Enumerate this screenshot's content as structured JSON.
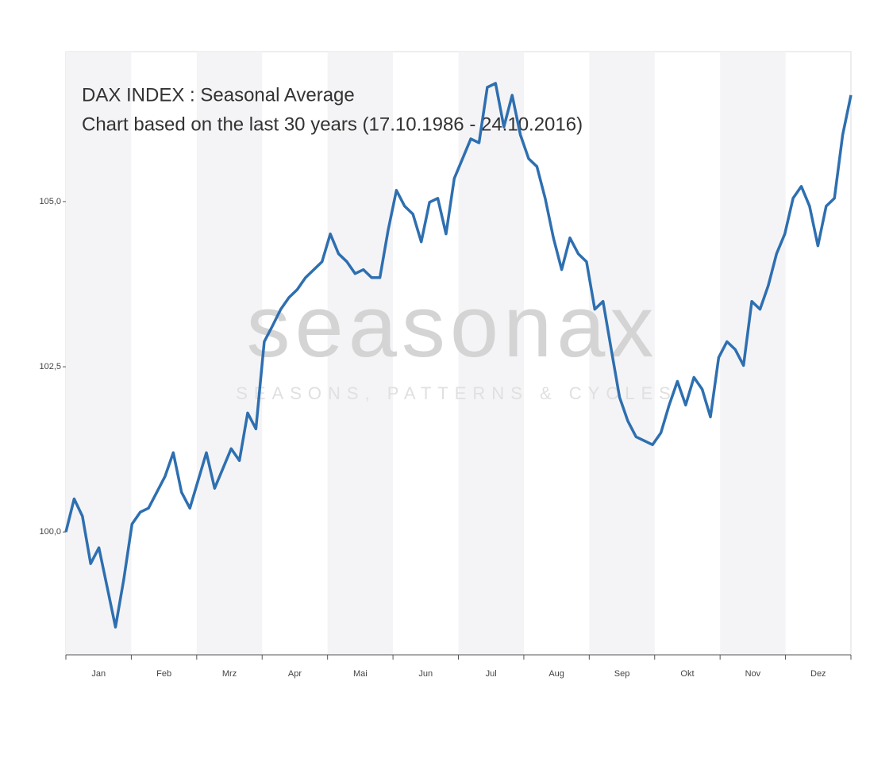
{
  "chart_data": {
    "type": "line",
    "title": "DAX INDEX : Seasonal Average",
    "subtitle": "Chart based on the last 30 years (17.10.1986 - 24.10.2016)",
    "watermark": "seasonax",
    "watermark_tagline": "SEASONS, PATTERNS & CYCLES",
    "categories": [
      null,
      null,
      null,
      "Jan",
      null,
      null,
      null,
      null,
      null,
      null,
      null,
      "Feb",
      null,
      null,
      null,
      null,
      null,
      null,
      null,
      "Mrz",
      null,
      null,
      null,
      null,
      null,
      null,
      null,
      "Apr",
      null,
      null,
      null,
      null,
      null,
      null,
      null,
      "Mai",
      null,
      null,
      null,
      null,
      null,
      null,
      null,
      "Jun",
      null,
      null,
      null,
      null,
      null,
      null,
      null,
      "Jul",
      null,
      null,
      null,
      null,
      null,
      null,
      null,
      "Aug",
      null,
      null,
      null,
      null,
      null,
      null,
      null,
      "Sep",
      null,
      null,
      null,
      null,
      null,
      null,
      null,
      "Okt",
      null,
      null,
      null,
      null,
      null,
      null,
      null,
      "Nov",
      null,
      null,
      null,
      null,
      null,
      null,
      null,
      "Dez",
      null,
      null,
      null,
      null
    ],
    "values": [
      100.0,
      100.5,
      100.24,
      99.52,
      99.76,
      99.16,
      98.56,
      99.28,
      100.12,
      100.3,
      100.36,
      100.6,
      100.84,
      101.2,
      100.6,
      100.36,
      100.78,
      101.2,
      100.66,
      100.96,
      101.26,
      101.08,
      101.8,
      101.56,
      102.88,
      103.12,
      103.37,
      103.55,
      103.67,
      103.85,
      103.97,
      104.09,
      104.51,
      104.21,
      104.09,
      103.91,
      103.97,
      103.85,
      103.85,
      104.57,
      105.17,
      104.93,
      104.81,
      104.39,
      104.99,
      105.05,
      104.51,
      105.35,
      105.65,
      105.95,
      105.89,
      106.73,
      106.79,
      106.13,
      106.61,
      106.01,
      105.65,
      105.53,
      105.05,
      104.45,
      103.97,
      104.45,
      104.21,
      104.09,
      103.37,
      103.49,
      102.76,
      102.04,
      101.68,
      101.44,
      101.38,
      101.32,
      101.5,
      101.92,
      102.28,
      101.92,
      102.34,
      102.16,
      101.74,
      102.64,
      102.88,
      102.76,
      102.52,
      103.49,
      103.37,
      103.73,
      104.21,
      104.51,
      105.05,
      105.23,
      104.93,
      104.33,
      104.93,
      105.05,
      106.01,
      106.61
    ],
    "color": "#2e6fb0",
    "ylim": [
      98.14,
      107.27
    ],
    "yticks": [
      {
        "value": 100,
        "label": "100,0"
      },
      {
        "value": 102.5,
        "label": "102,5"
      },
      {
        "value": 105,
        "label": "105,0"
      }
    ]
  }
}
